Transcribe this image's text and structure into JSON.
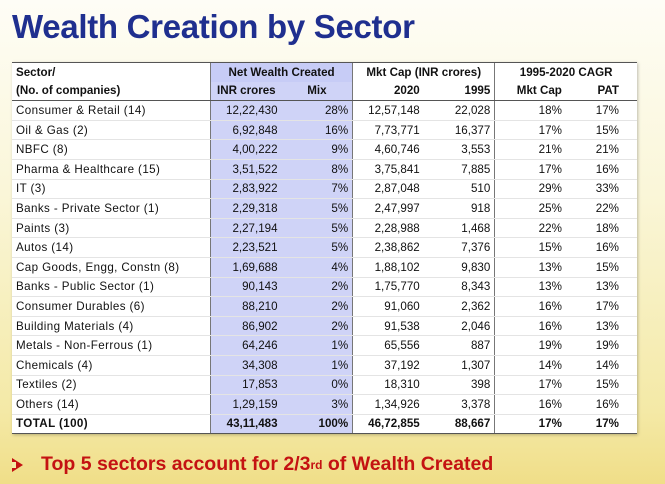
{
  "title": "Wealth Creation by Sector",
  "header": {
    "sector_line1": "Sector/",
    "sector_line2": "(No. of companies)",
    "nw_group": "Net Wealth Created",
    "nw_inr": "INR crores",
    "nw_mix": "Mix",
    "mcap_group": "Mkt Cap (INR crores)",
    "mcap_2020": "2020",
    "mcap_1995": "1995",
    "cagr_group": "1995-2020 CAGR",
    "cagr_mcap": "Mkt Cap",
    "cagr_pat": "PAT"
  },
  "rows": [
    {
      "sector": "Consumer & Retail (14)",
      "inr": "12,22,430",
      "mix": "28%",
      "m2020": "12,57,148",
      "m1995": "22,028",
      "cagr_mcap": "18%",
      "cagr_pat": "17%"
    },
    {
      "sector": "Oil & Gas (2)",
      "inr": "6,92,848",
      "mix": "16%",
      "m2020": "7,73,771",
      "m1995": "16,377",
      "cagr_mcap": "17%",
      "cagr_pat": "15%"
    },
    {
      "sector": "NBFC (8)",
      "inr": "4,00,222",
      "mix": "9%",
      "m2020": "4,60,746",
      "m1995": "3,553",
      "cagr_mcap": "21%",
      "cagr_pat": "21%"
    },
    {
      "sector": "Pharma & Healthcare (15)",
      "inr": "3,51,522",
      "mix": "8%",
      "m2020": "3,75,841",
      "m1995": "7,885",
      "cagr_mcap": "17%",
      "cagr_pat": "16%"
    },
    {
      "sector": "IT (3)",
      "inr": "2,83,922",
      "mix": "7%",
      "m2020": "2,87,048",
      "m1995": "510",
      "cagr_mcap": "29%",
      "cagr_pat": "33%"
    },
    {
      "sector": "Banks - Private Sector (1)",
      "inr": "2,29,318",
      "mix": "5%",
      "m2020": "2,47,997",
      "m1995": "918",
      "cagr_mcap": "25%",
      "cagr_pat": "22%"
    },
    {
      "sector": "Paints (3)",
      "inr": "2,27,194",
      "mix": "5%",
      "m2020": "2,28,988",
      "m1995": "1,468",
      "cagr_mcap": "22%",
      "cagr_pat": "18%"
    },
    {
      "sector": "Autos (14)",
      "inr": "2,23,521",
      "mix": "5%",
      "m2020": "2,38,862",
      "m1995": "7,376",
      "cagr_mcap": "15%",
      "cagr_pat": "16%"
    },
    {
      "sector": "Cap Goods, Engg, Constn (8)",
      "inr": "1,69,688",
      "mix": "4%",
      "m2020": "1,88,102",
      "m1995": "9,830",
      "cagr_mcap": "13%",
      "cagr_pat": "15%"
    },
    {
      "sector": "Banks - Public Sector (1)",
      "inr": "90,143",
      "mix": "2%",
      "m2020": "1,75,770",
      "m1995": "8,343",
      "cagr_mcap": "13%",
      "cagr_pat": "13%"
    },
    {
      "sector": "Consumer Durables (6)",
      "inr": "88,210",
      "mix": "2%",
      "m2020": "91,060",
      "m1995": "2,362",
      "cagr_mcap": "16%",
      "cagr_pat": "17%"
    },
    {
      "sector": "Building Materials (4)",
      "inr": "86,902",
      "mix": "2%",
      "m2020": "91,538",
      "m1995": "2,046",
      "cagr_mcap": "16%",
      "cagr_pat": "13%"
    },
    {
      "sector": "Metals - Non-Ferrous (1)",
      "inr": "64,246",
      "mix": "1%",
      "m2020": "65,556",
      "m1995": "887",
      "cagr_mcap": "19%",
      "cagr_pat": "19%"
    },
    {
      "sector": "Chemicals (4)",
      "inr": "34,308",
      "mix": "1%",
      "m2020": "37,192",
      "m1995": "1,307",
      "cagr_mcap": "14%",
      "cagr_pat": "14%"
    },
    {
      "sector": "Textiles (2)",
      "inr": "17,853",
      "mix": "0%",
      "m2020": "18,310",
      "m1995": "398",
      "cagr_mcap": "17%",
      "cagr_pat": "15%"
    },
    {
      "sector": "Others (14)",
      "inr": "1,29,159",
      "mix": "3%",
      "m2020": "1,34,926",
      "m1995": "3,378",
      "cagr_mcap": "16%",
      "cagr_pat": "16%"
    }
  ],
  "total": {
    "sector": "TOTAL (100)",
    "inr": "43,11,483",
    "mix": "100%",
    "m2020": "46,72,855",
    "m1995": "88,667",
    "cagr_mcap": "17%",
    "cagr_pat": "17%"
  },
  "footer": {
    "text_before": "Top 5 sectors account for 2/3",
    "superscript": "rd",
    "text_after": " of Wealth Created"
  },
  "colors": {
    "title": "#1f2f8f",
    "highlight_column": "#cfd3f7",
    "footer_text": "#c41212"
  }
}
